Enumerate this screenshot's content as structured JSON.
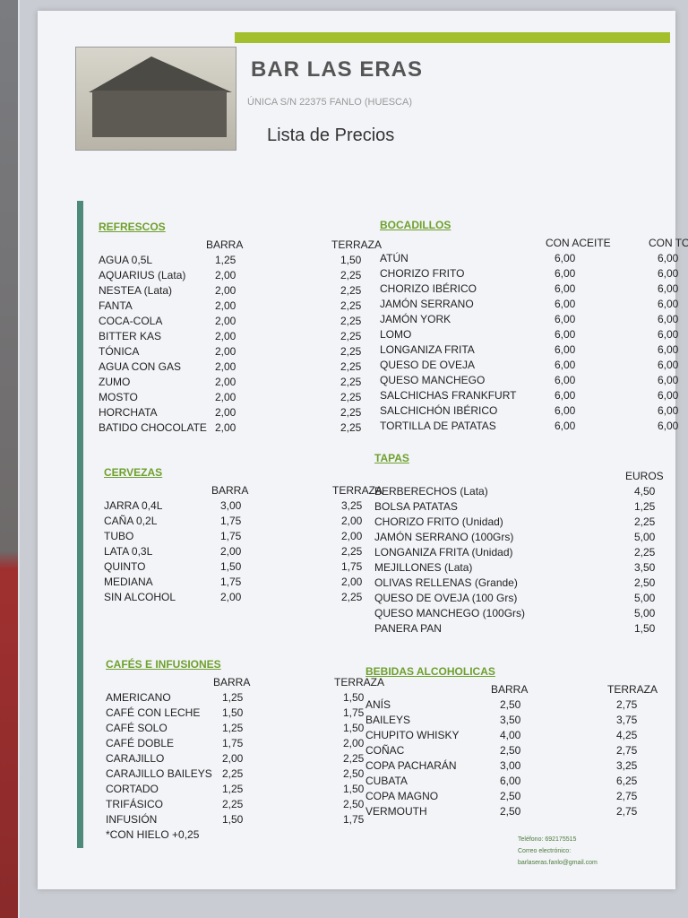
{
  "header": {
    "title": "BAR LAS ERAS",
    "address": "ÚNICA S/N 22375 FANLO (HUESCA)",
    "subtitle": "Lista de Precios"
  },
  "colors": {
    "accent": "#a3bf2c",
    "heading": "#6ea02c",
    "side_bar": "#4e8a7a"
  },
  "sections": [
    {
      "title": "REFRESCOS",
      "columns": [
        "BARRA",
        "TERRAZA"
      ],
      "items": [
        [
          "AGUA 0,5L",
          "1,25",
          "1,50"
        ],
        [
          "AQUARIUS (Lata)",
          "2,00",
          "2,25"
        ],
        [
          "NESTEA (Lata)",
          "2,00",
          "2,25"
        ],
        [
          "FANTA",
          "2,00",
          "2,25"
        ],
        [
          "COCA-COLA",
          "2,00",
          "2,25"
        ],
        [
          "BITTER KAS",
          "2,00",
          "2,25"
        ],
        [
          "TÓNICA",
          "2,00",
          "2,25"
        ],
        [
          "AGUA CON GAS",
          "2,00",
          "2,25"
        ],
        [
          "ZUMO",
          "2,00",
          "2,25"
        ],
        [
          "MOSTO",
          "2,00",
          "2,25"
        ],
        [
          "HORCHATA",
          "2,00",
          "2,25"
        ],
        [
          "BATIDO CHOCOLATE",
          "2,00",
          "2,25"
        ]
      ]
    },
    {
      "title": "CERVEZAS",
      "columns": [
        "BARRA",
        "TERRAZA"
      ],
      "items": [
        [
          "JARRA 0,4L",
          "3,00",
          "3,25"
        ],
        [
          "CAÑA 0,2L",
          "1,75",
          "2,00"
        ],
        [
          "TUBO",
          "1,75",
          "2,00"
        ],
        [
          "LATA 0,3L",
          "2,00",
          "2,25"
        ],
        [
          "QUINTO",
          "1,50",
          "1,75"
        ],
        [
          "MEDIANA",
          "1,75",
          "2,00"
        ],
        [
          "SIN ALCOHOL",
          "2,00",
          "2,25"
        ]
      ]
    },
    {
      "title": "CAFÉS E INFUSIONES",
      "columns": [
        "BARRA",
        "TERRAZA"
      ],
      "items": [
        [
          "AMERICANO",
          "1,25",
          "1,50"
        ],
        [
          "CAFÉ CON LECHE",
          "1,50",
          "1,75"
        ],
        [
          "CAFÉ SOLO",
          "1,25",
          "1,50"
        ],
        [
          "CAFÉ DOBLE",
          "1,75",
          "2,00"
        ],
        [
          "CARAJILLO",
          "2,00",
          "2,25"
        ],
        [
          "CARAJILLO BAILEYS",
          "2,25",
          "2,50"
        ],
        [
          "CORTADO",
          "1,25",
          "1,50"
        ],
        [
          "TRIFÁSICO",
          "2,25",
          "2,50"
        ],
        [
          "INFUSIÓN",
          "1,50",
          "1,75"
        ],
        [
          "*CON HIELO +0,25",
          "",
          ""
        ]
      ]
    },
    {
      "title": "BOCADILLOS",
      "columns": [
        "CON ACEITE",
        "CON TOMATE"
      ],
      "items": [
        [
          "ATÚN",
          "6,00",
          "6,00"
        ],
        [
          "CHORIZO FRITO",
          "6,00",
          "6,00"
        ],
        [
          "CHORIZO IBÉRICO",
          "6,00",
          "6,00"
        ],
        [
          "JAMÓN SERRANO",
          "6,00",
          "6,00"
        ],
        [
          "JAMÓN YORK",
          "6,00",
          "6,00"
        ],
        [
          "LOMO",
          "6,00",
          "6,00"
        ],
        [
          "LONGANIZA FRITA",
          "6,00",
          "6,00"
        ],
        [
          "QUESO DE OVEJA",
          "6,00",
          "6,00"
        ],
        [
          "QUESO MANCHEGO",
          "6,00",
          "6,00"
        ],
        [
          "SALCHICHAS FRANKFURT",
          "6,00",
          "6,00"
        ],
        [
          "SALCHICHÓN IBÉRICO",
          "6,00",
          "6,00"
        ],
        [
          "TORTILLA DE PATATAS",
          "6,00",
          "6,00"
        ]
      ]
    },
    {
      "title": "TAPAS",
      "columns": [
        "",
        "EUROS"
      ],
      "items": [
        [
          "BERBERECHOS (Lata)",
          "",
          "4,50"
        ],
        [
          "BOLSA PATATAS",
          "",
          "1,25"
        ],
        [
          "CHORIZO FRITO (Unidad)",
          "",
          "2,25"
        ],
        [
          "JAMÓN SERRANO (100Grs)",
          "",
          "5,00"
        ],
        [
          "LONGANIZA FRITA (Unidad)",
          "",
          "2,25"
        ],
        [
          "MEJILLONES (Lata)",
          "",
          "3,50"
        ],
        [
          "OLIVAS RELLENAS (Grande)",
          "",
          "2,50"
        ],
        [
          "QUESO DE OVEJA (100 Grs)",
          "",
          "5,00"
        ],
        [
          "QUESO MANCHEGO (100Grs)",
          "",
          "5,00"
        ],
        [
          "PANERA PAN",
          "",
          "1,50"
        ]
      ]
    },
    {
      "title": "BEBIDAS ALCOHOLICAS",
      "columns": [
        "BARRA",
        "TERRAZA"
      ],
      "items": [
        [
          "ANÍS",
          "2,50",
          "2,75"
        ],
        [
          "BAILEYS",
          "3,50",
          "3,75"
        ],
        [
          "CHUPITO WHISKY",
          "4,00",
          "4,25"
        ],
        [
          "COÑAC",
          "2,50",
          "2,75"
        ],
        [
          "COPA PACHARÁN",
          "3,00",
          "3,25"
        ],
        [
          "CUBATA",
          "6,00",
          "6,25"
        ],
        [
          "COPA MAGNO",
          "2,50",
          "2,75"
        ],
        [
          "VERMOUTH",
          "2,50",
          "2,75"
        ]
      ]
    }
  ],
  "footer": {
    "phone": "Teléfono: 692175515",
    "email_label": "Correo electrónico:",
    "email": "barlaseras.fanlo@gmail.com"
  }
}
